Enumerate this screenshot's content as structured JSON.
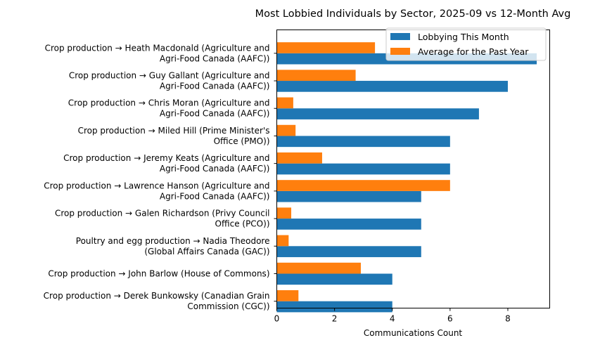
{
  "chart_data": {
    "type": "bar",
    "orientation": "horizontal",
    "title": "Most Lobbied Individuals by Sector, 2025-09 vs 12-Month Avg",
    "xlabel": "Communications Count",
    "ylabel": "",
    "xlim": [
      0,
      9.45
    ],
    "xticks": [
      "0",
      "2",
      "4",
      "6",
      "8"
    ],
    "grid": false,
    "legend_position": "top-right",
    "categories": [
      [
        "Crop production → Heath Macdonald (Agriculture and",
        "Agri-Food Canada (AAFC))"
      ],
      [
        "Crop production → Guy Gallant (Agriculture and",
        "Agri-Food Canada (AAFC))"
      ],
      [
        "Crop production → Chris Moran (Agriculture and",
        "Agri-Food Canada (AAFC))"
      ],
      [
        "Crop production → Miled Hill (Prime Minister's",
        "Office (PMO))"
      ],
      [
        "Crop production → Jeremy Keats (Agriculture and",
        "Agri-Food Canada (AAFC))"
      ],
      [
        "Crop production → Lawrence Hanson (Agriculture and",
        "Agri-Food Canada (AAFC))"
      ],
      [
        "Crop production → Galen Richardson (Privy Council",
        "Office (PCO))"
      ],
      [
        "Poultry and egg production → Nadia Theodore",
        "(Global Affairs Canada (GAC))"
      ],
      [
        "Crop production → John Barlow (House of Commons)"
      ],
      [
        "Crop production → Derek Bunkowsky (Canadian Grain",
        "Commission (CGC))"
      ]
    ],
    "series": [
      {
        "name": "Lobbying This Month",
        "color": "#1f77b4",
        "values": [
          9,
          8,
          7,
          6,
          6,
          5,
          5,
          5,
          4,
          4
        ]
      },
      {
        "name": "Average for the Past Year",
        "color": "#ff7f0e",
        "values": [
          3.4,
          2.73,
          0.57,
          0.65,
          1.57,
          6.0,
          0.5,
          0.41,
          2.91,
          0.75
        ]
      }
    ]
  }
}
